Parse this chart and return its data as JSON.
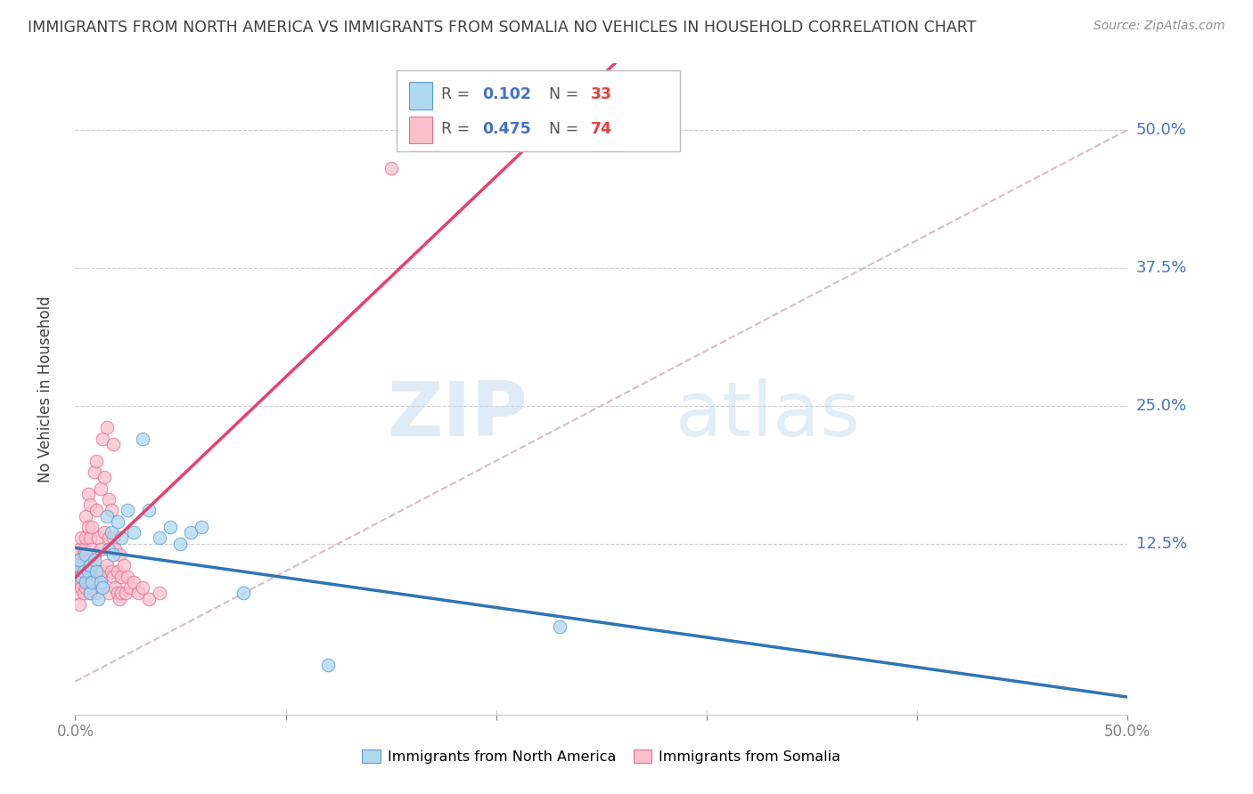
{
  "title": "IMMIGRANTS FROM NORTH AMERICA VS IMMIGRANTS FROM SOMALIA NO VEHICLES IN HOUSEHOLD CORRELATION CHART",
  "source": "Source: ZipAtlas.com",
  "ylabel": "No Vehicles in Household",
  "ytick_labels": [
    "50.0%",
    "37.5%",
    "25.0%",
    "12.5%"
  ],
  "ytick_values": [
    0.5,
    0.375,
    0.25,
    0.125
  ],
  "xlim": [
    0.0,
    0.5
  ],
  "ylim": [
    -0.03,
    0.56
  ],
  "legend_blue_label": "Immigrants from North America",
  "legend_pink_label": "Immigrants from Somalia",
  "R_blue": 0.102,
  "N_blue": 33,
  "R_pink": 0.475,
  "N_pink": 74,
  "blue_color": "#ADD8F0",
  "pink_color": "#F9BFCB",
  "blue_edge_color": "#5B9BD5",
  "pink_edge_color": "#E87090",
  "blue_line_color": "#2E75B6",
  "pink_line_color": "#E84070",
  "diag_color": "#D0B0C0",
  "watermark_color": "#C8E0F0",
  "background_color": "#FFFFFF",
  "title_color": "#404040",
  "source_color": "#909090",
  "ylabel_color": "#404040",
  "ytick_color": "#4472C4",
  "xtick_color": "#808080",
  "grid_color": "#CCCCCC",
  "north_america_x": [
    0.001,
    0.002,
    0.003,
    0.004,
    0.005,
    0.005,
    0.006,
    0.007,
    0.007,
    0.008,
    0.009,
    0.01,
    0.011,
    0.012,
    0.013,
    0.015,
    0.016,
    0.017,
    0.018,
    0.02,
    0.022,
    0.025,
    0.028,
    0.032,
    0.035,
    0.04,
    0.045,
    0.05,
    0.055,
    0.06,
    0.08,
    0.12,
    0.23
  ],
  "north_america_y": [
    0.105,
    0.11,
    0.095,
    0.1,
    0.115,
    0.09,
    0.1,
    0.105,
    0.08,
    0.09,
    0.11,
    0.1,
    0.075,
    0.09,
    0.085,
    0.15,
    0.12,
    0.135,
    0.115,
    0.145,
    0.13,
    0.155,
    0.135,
    0.22,
    0.155,
    0.13,
    0.14,
    0.125,
    0.135,
    0.14,
    0.08,
    0.015,
    0.05
  ],
  "somalia_x": [
    0.001,
    0.001,
    0.001,
    0.002,
    0.002,
    0.002,
    0.002,
    0.003,
    0.003,
    0.003,
    0.003,
    0.003,
    0.004,
    0.004,
    0.004,
    0.004,
    0.005,
    0.005,
    0.005,
    0.005,
    0.006,
    0.006,
    0.006,
    0.006,
    0.007,
    0.007,
    0.007,
    0.007,
    0.008,
    0.008,
    0.008,
    0.009,
    0.009,
    0.009,
    0.01,
    0.01,
    0.01,
    0.011,
    0.011,
    0.012,
    0.012,
    0.012,
    0.013,
    0.013,
    0.014,
    0.014,
    0.015,
    0.015,
    0.016,
    0.016,
    0.016,
    0.017,
    0.017,
    0.018,
    0.018,
    0.018,
    0.019,
    0.019,
    0.02,
    0.02,
    0.021,
    0.021,
    0.022,
    0.022,
    0.023,
    0.024,
    0.025,
    0.026,
    0.028,
    0.03,
    0.032,
    0.035,
    0.04,
    0.15
  ],
  "somalia_y": [
    0.1,
    0.095,
    0.08,
    0.11,
    0.09,
    0.12,
    0.07,
    0.105,
    0.09,
    0.13,
    0.1,
    0.085,
    0.12,
    0.115,
    0.095,
    0.08,
    0.13,
    0.1,
    0.15,
    0.085,
    0.14,
    0.11,
    0.17,
    0.09,
    0.13,
    0.16,
    0.105,
    0.08,
    0.14,
    0.1,
    0.12,
    0.09,
    0.19,
    0.115,
    0.2,
    0.08,
    0.155,
    0.13,
    0.1,
    0.175,
    0.12,
    0.095,
    0.22,
    0.1,
    0.185,
    0.135,
    0.23,
    0.105,
    0.13,
    0.165,
    0.08,
    0.155,
    0.1,
    0.215,
    0.095,
    0.13,
    0.12,
    0.085,
    0.1,
    0.08,
    0.115,
    0.075,
    0.095,
    0.08,
    0.105,
    0.08,
    0.095,
    0.085,
    0.09,
    0.08,
    0.085,
    0.075,
    0.08,
    0.465
  ]
}
